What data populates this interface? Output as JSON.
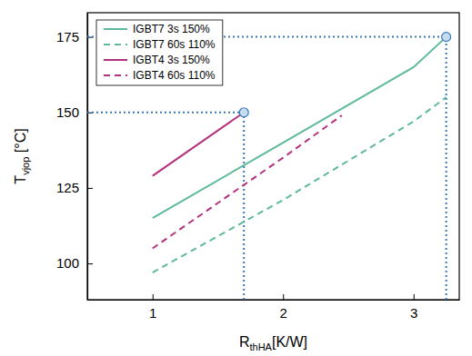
{
  "chart_data": {
    "type": "line",
    "xlabel": {
      "base": "R",
      "subscript": "thHA",
      "unit": "[K/W]"
    },
    "ylabel": {
      "base": "T",
      "subscript": "vjop",
      "unit": " [°C]"
    },
    "xlim": [
      0.5,
      3.35
    ],
    "ylim": [
      88,
      183
    ],
    "xticks": [
      1,
      2,
      3
    ],
    "yticks": [
      100,
      125,
      150,
      175
    ],
    "grid": false,
    "legend": "upper left",
    "series": [
      {
        "name": "IGBT7 3s 150%",
        "color": "#5fb99c",
        "line_style": "solid",
        "x": [
          1,
          2,
          3,
          3.25
        ],
        "values": [
          115,
          140,
          165,
          175
        ]
      },
      {
        "name": "IGBT7 60s 110%",
        "color": "#5fb99c",
        "line_style": "dashed",
        "x": [
          1,
          2,
          3,
          3.25
        ],
        "values": [
          97,
          121,
          147,
          155
        ]
      },
      {
        "name": "IGBT4 3s 150%",
        "color": "#b2307c",
        "line_style": "solid",
        "x": [
          1,
          1.7
        ],
        "values": [
          129,
          150
        ]
      },
      {
        "name": "IGBT4 60s 110%",
        "color": "#b2307c",
        "line_style": "dashed",
        "x": [
          1,
          2,
          2.45
        ],
        "values": [
          105,
          135,
          149
        ]
      }
    ],
    "reference_points": [
      {
        "x": 1.7,
        "y": 150,
        "color": "#3a78b6"
      },
      {
        "x": 3.25,
        "y": 175,
        "color": "#3a78b6"
      }
    ]
  }
}
